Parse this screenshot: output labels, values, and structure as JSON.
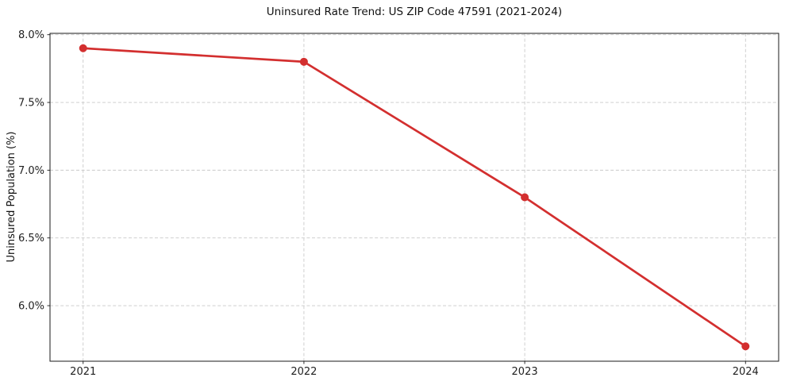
{
  "chart_data": {
    "type": "line",
    "title": "Uninsured Rate Trend: US ZIP Code 47591 (2021-2024)",
    "xlabel": "",
    "ylabel": "Uninsured Population (%)",
    "x": [
      2021,
      2022,
      2023,
      2024
    ],
    "values": [
      7.9,
      7.8,
      6.8,
      5.7
    ],
    "line_color": "#d32f2f",
    "marker": "circle",
    "grid": true,
    "grid_style": "dashed",
    "legend": "none",
    "xlim": [
      2020.85,
      2024.15
    ],
    "ylim": [
      5.59,
      8.01
    ],
    "xticks": {
      "values": [
        2021,
        2022,
        2023,
        2024
      ],
      "labels": [
        "2021",
        "2022",
        "2023",
        "2024"
      ]
    },
    "yticks": {
      "values": [
        6.0,
        6.5,
        7.0,
        7.5,
        8.0
      ],
      "labels": [
        "6.0%",
        "6.5%",
        "7.0%",
        "7.5%",
        "8.0%"
      ]
    }
  }
}
